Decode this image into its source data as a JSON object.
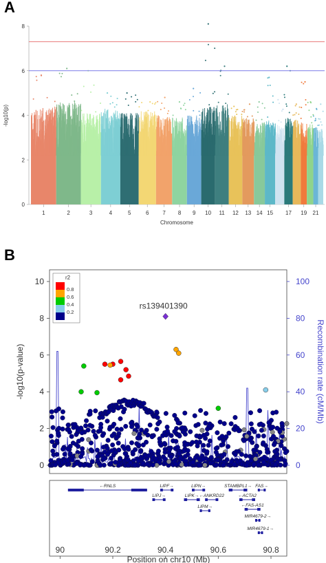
{
  "panel_a": {
    "letter": "A",
    "xlabel": "Chromosome",
    "ylabel": "-log10(p)",
    "yticks": [
      "0",
      "2",
      "4",
      "6",
      "8"
    ],
    "chrom_labels": [
      "1",
      "2",
      "3",
      "4",
      "5",
      "6",
      "7",
      "8",
      "9",
      "10",
      "11",
      "12",
      "13",
      "14",
      "15",
      "17",
      "19",
      "21"
    ]
  },
  "panel_b": {
    "letter": "B",
    "ylabel_left": "-log10(p-value)",
    "ylabel_right": "Recombination rate (cM/Mb)",
    "xlabel": "Position on chr10 (Mb)",
    "yticks_left": [
      "0",
      "2",
      "4",
      "6",
      "8",
      "10"
    ],
    "yticks_right": [
      "0",
      "20",
      "40",
      "60",
      "80",
      "100"
    ],
    "xticks": [
      "90",
      "90.2",
      "90.4",
      "90.6",
      "90.8"
    ],
    "lead_snp": "rs139401390",
    "legend_title": "r2",
    "legend_labels": [
      "0.8",
      "0.6",
      "0.4",
      "0.2"
    ],
    "genes": [
      {
        "name": "RNLS",
        "label": "←RNLS"
      },
      {
        "name": "LIPF",
        "label": "LIPF→"
      },
      {
        "name": "LIPN",
        "label": "LIPN→"
      },
      {
        "name": "STAMBPL1",
        "label": "STAMBPL1→"
      },
      {
        "name": "FAS",
        "label": "FAS→"
      },
      {
        "name": "LIPJ",
        "label": "LIPJ→"
      },
      {
        "name": "LIPK",
        "label": "LIPK→"
      },
      {
        "name": "ANKRD22",
        "label": "←ANKRD22"
      },
      {
        "name": "ACTA2",
        "label": "←ACTA2"
      },
      {
        "name": "FAS-AS1",
        "label": "←FAS-AS1"
      },
      {
        "name": "LIPM",
        "label": "LIPM→"
      },
      {
        "name": "MIR4679-2",
        "label": "MIR4679-2→"
      },
      {
        "name": "MIR4679-1",
        "label": "MIR4679-1→"
      }
    ]
  },
  "colors": {
    "threshold_red": "#e87a7a",
    "threshold_blue": "#7a7ae8",
    "lead": "#7a2fd6",
    "r2_0.8_1": "#ff0000",
    "r2_0.6_0.8": "#ffa500",
    "r2_0.4_0.6": "#00cc00",
    "r2_0.2_0.4": "#87ceeb",
    "r2_0_0.2": "#00008b",
    "recomb": "#4444cc"
  },
  "chart_data": [
    {
      "type": "scatter",
      "title": "",
      "xlabel": "Chromosome",
      "ylabel": "-log10(p)",
      "ylim": [
        0,
        8
      ],
      "thresholds": [
        7.3,
        6.0
      ],
      "grid": false,
      "series": [
        {
          "chrom": "1",
          "max": 5.8,
          "bulk": 4.4
        },
        {
          "chrom": "2",
          "max": 6.1,
          "bulk": 4.6
        },
        {
          "chrom": "3",
          "max": 6.0,
          "bulk": 4.1
        },
        {
          "chrom": "4",
          "max": 5.0,
          "bulk": 4.3
        },
        {
          "chrom": "5",
          "max": 5.0,
          "bulk": 4.1
        },
        {
          "chrom": "6",
          "max": 4.6,
          "bulk": 4.2
        },
        {
          "chrom": "7",
          "max": 4.8,
          "bulk": 4.0
        },
        {
          "chrom": "8",
          "max": 4.6,
          "bulk": 3.9
        },
        {
          "chrom": "9",
          "max": 5.2,
          "bulk": 4.0
        },
        {
          "chrom": "10",
          "max": 8.1,
          "bulk": 4.4
        },
        {
          "chrom": "11",
          "max": 6.2,
          "bulk": 4.5
        },
        {
          "chrom": "12",
          "max": 4.4,
          "bulk": 4.0
        },
        {
          "chrom": "13",
          "max": 4.5,
          "bulk": 3.9
        },
        {
          "chrom": "14",
          "max": 4.6,
          "bulk": 3.7
        },
        {
          "chrom": "15",
          "max": 5.7,
          "bulk": 3.8
        },
        {
          "chrom": "16",
          "max": 4.7,
          "bulk": 3.6
        },
        {
          "chrom": "17",
          "max": 6.2,
          "bulk": 3.9
        },
        {
          "chrom": "18",
          "max": 4.5,
          "bulk": 3.8
        },
        {
          "chrom": "19",
          "max": 5.5,
          "bulk": 3.7
        },
        {
          "chrom": "20",
          "max": 4.6,
          "bulk": 3.6
        },
        {
          "chrom": "21",
          "max": 4.3,
          "bulk": 3.5
        },
        {
          "chrom": "22",
          "max": 4.5,
          "bulk": 3.4
        }
      ]
    },
    {
      "type": "scatter",
      "title": "",
      "xlabel": "Position on chr10 (Mb)",
      "ylabel": "-log10(p-value)",
      "y2label": "Recombination rate (cM/Mb)",
      "xlim": [
        89.96,
        90.86
      ],
      "ylim": [
        0,
        10
      ],
      "y2lim": [
        0,
        100
      ],
      "lead": {
        "name": "rs139401390",
        "x": 90.4,
        "y": 8.1
      },
      "series": [
        {
          "name": "0.8",
          "points": [
            [
              90.17,
              5.5
            ],
            [
              90.2,
              5.5
            ],
            [
              90.23,
              5.65
            ],
            [
              90.25,
              5.2
            ],
            [
              90.23,
              4.65
            ],
            [
              90.26,
              4.85
            ]
          ]
        },
        {
          "name": "0.6",
          "points": [
            [
              90.19,
              5.45
            ],
            [
              90.44,
              6.3
            ],
            [
              90.45,
              6.1
            ]
          ]
        },
        {
          "name": "0.4",
          "points": [
            [
              90.09,
              5.4
            ],
            [
              90.08,
              4.0
            ],
            [
              90.14,
              3.95
            ],
            [
              90.6,
              3.1
            ]
          ]
        },
        {
          "name": "0.2",
          "points": [
            [
              90.78,
              4.1
            ]
          ]
        }
      ],
      "recombination_peaks": [
        {
          "x": 89.99,
          "rate": 62
        },
        {
          "x": 90.3,
          "rate": 33
        },
        {
          "x": 90.71,
          "rate": 42
        },
        {
          "x": 90.79,
          "rate": 30
        }
      ]
    }
  ]
}
